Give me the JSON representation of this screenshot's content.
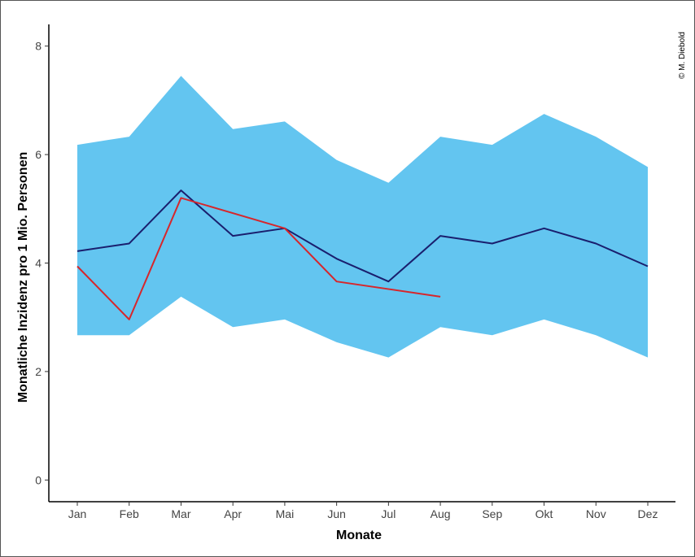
{
  "chart_data": {
    "type": "line",
    "categories": [
      "Jan",
      "Feb",
      "Mar",
      "Apr",
      "Mai",
      "Jun",
      "Jul",
      "Aug",
      "Sep",
      "Okt",
      "Nov",
      "Dez"
    ],
    "band": {
      "lower": [
        2.67,
        2.67,
        3.38,
        2.82,
        2.96,
        2.54,
        2.26,
        2.82,
        2.67,
        2.96,
        2.67,
        2.26
      ],
      "upper": [
        6.18,
        6.33,
        7.45,
        6.47,
        6.61,
        5.9,
        5.48,
        6.33,
        6.18,
        6.75,
        6.33,
        5.77
      ],
      "color": "#63c5f0"
    },
    "series": [
      {
        "values": [
          4.22,
          4.36,
          5.34,
          4.5,
          4.64,
          4.08,
          3.66,
          4.5,
          4.36,
          4.64,
          4.36,
          3.94
        ],
        "color": "#1a1f6e"
      },
      {
        "values": [
          3.94,
          2.96,
          5.2,
          null,
          4.64,
          3.66,
          null,
          3.38,
          null,
          null,
          null,
          null
        ],
        "color": "#d7262b"
      }
    ],
    "xlabel": "Monate",
    "ylabel": "Monatliche Inzidenz pro 1 Mio. Personen",
    "yticks": [
      0,
      2,
      4,
      6,
      8
    ],
    "ylim": [
      -0.4,
      8.4
    ],
    "grid": false,
    "credit": "© M. Diebold"
  }
}
